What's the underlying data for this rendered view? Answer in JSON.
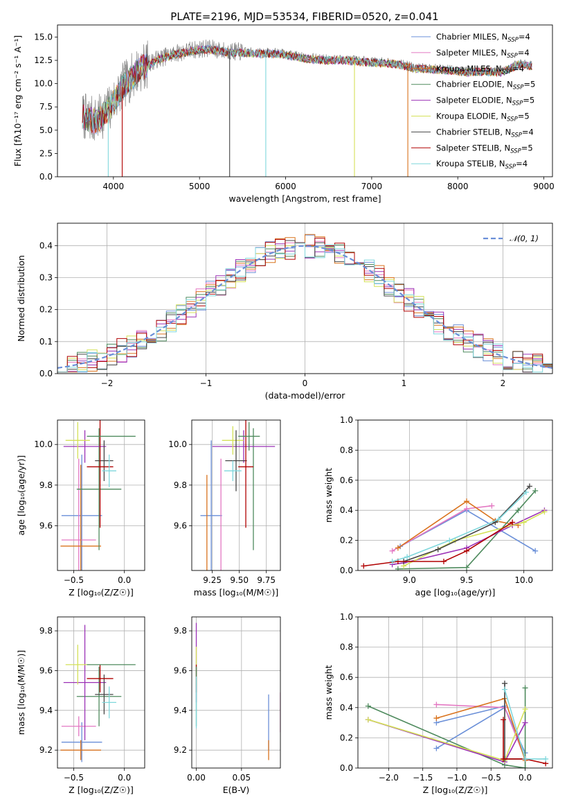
{
  "figure": {
    "title": "PLATE=2196, MJD=53534, FIBERID=0520, z=0.041"
  },
  "colors": {
    "Chabrier MILES": "#6a8fd8",
    "Salpeter MILES": "#e377c2",
    "Kroupa MILES": "#d9721c",
    "Chabrier ELODIE": "#4e8a5d",
    "Salpeter ELODIE": "#9b30b6",
    "Kroupa ELODIE": "#d4e157",
    "Chabrier STELIB": "#444444",
    "Salpeter STELIB": "#b00000",
    "Kroupa STELIB": "#7fd7dc"
  },
  "chart_data": [
    {
      "id": "spectrum",
      "type": "line",
      "title": "PLATE=2196, MJD=53534, FIBERID=0520, z=0.041",
      "xlabel": "wavelength [Angstrom, rest frame]",
      "ylabel": "Flux [fλ10⁻¹⁷ erg cm⁻² s⁻¹ A⁻¹]",
      "xlim": [
        3350,
        9100
      ],
      "ylim": [
        0,
        16.3
      ],
      "xticks": [
        4000,
        5000,
        6000,
        7000,
        8000,
        9000
      ],
      "yticks": [
        0.0,
        2.5,
        5.0,
        7.5,
        10.0,
        12.5,
        15.0
      ],
      "xtick_labels": [
        "4000",
        "5000",
        "6000",
        "7000",
        "8000",
        "9000"
      ],
      "ytick_labels": [
        "0.0",
        "2.5",
        "5.0",
        "7.5",
        "10.0",
        "12.5",
        "15.0"
      ],
      "grid": false,
      "legend_position": "top-right",
      "legend": [
        {
          "label": "Chabrier MILES, N",
          "sub": "SSP",
          "suffix": "=4"
        },
        {
          "label": "Salpeter MILES, N",
          "sub": "SSP",
          "suffix": "=4"
        },
        {
          "label": "Kroupa MILES, N",
          "sub": "SSP",
          "suffix": "=4"
        },
        {
          "label": "Chabrier ELODIE, N",
          "sub": "SSP",
          "suffix": "=5"
        },
        {
          "label": "Salpeter ELODIE, N",
          "sub": "SSP",
          "suffix": "=5"
        },
        {
          "label": "Kroupa ELODIE, N",
          "sub": "SSP",
          "suffix": "=5"
        },
        {
          "label": "Chabrier STELIB, N",
          "sub": "SSP",
          "suffix": "=4"
        },
        {
          "label": "Salpeter STELIB, N",
          "sub": "SSP",
          "suffix": "=5"
        },
        {
          "label": "Kroupa STELIB, N",
          "sub": "SSP",
          "suffix": "=4"
        }
      ],
      "data_trend": {
        "x": [
          3650,
          3800,
          3950,
          4100,
          4300,
          4500,
          4700,
          4900,
          5100,
          5300,
          5500,
          5700,
          5900,
          6100,
          6300,
          6500,
          6700,
          6900,
          7100,
          7300,
          7500,
          7700,
          7900,
          8100,
          8300,
          8500,
          8700,
          8850
        ],
        "y": [
          6.5,
          6.0,
          7.3,
          9.6,
          11.6,
          12.6,
          13.2,
          13.6,
          13.8,
          13.5,
          13.4,
          13.3,
          13.3,
          13.0,
          12.7,
          12.6,
          12.6,
          12.4,
          12.3,
          12.2,
          11.7,
          11.6,
          11.5,
          11.3,
          11.4,
          11.3,
          12.1,
          12.0
        ]
      },
      "line_drops": [
        {
          "x": 3940,
          "series": "Kroupa STELIB"
        },
        {
          "x": 4102,
          "series": "Salpeter STELIB"
        },
        {
          "x": 5350,
          "series": "Chabrier STELIB"
        },
        {
          "x": 5770,
          "series": "Kroupa STELIB"
        },
        {
          "x": 6800,
          "series": "Kroupa ELODIE"
        },
        {
          "x": 7420,
          "series": "Kroupa MILES"
        }
      ]
    },
    {
      "id": "residual_histogram",
      "type": "line",
      "xlabel": "(data-model)/error",
      "ylabel": "Normed distribution",
      "xlim": [
        -2.5,
        2.5
      ],
      "ylim": [
        0,
        0.47
      ],
      "xticks": [
        -2,
        -1,
        0,
        1,
        2
      ],
      "yticks": [
        0.0,
        0.1,
        0.2,
        0.3,
        0.4
      ],
      "xtick_labels": [
        "−2",
        "−1",
        "0",
        "1",
        "2"
      ],
      "ytick_labels": [
        "0.0",
        "0.1",
        "0.2",
        "0.3",
        "0.4"
      ],
      "grid": true,
      "legend_position": "top-right",
      "normal_label": "𝒩(0, 1)",
      "bin_width": 0.1
    },
    {
      "id": "age_vs_Z",
      "type": "scatter",
      "xlabel": "Z [log₁₀(Z/Z☉)]",
      "ylabel": "age  [log₁₀(age/yr)]",
      "xlim": [
        -0.66,
        0.2
      ],
      "ylim": [
        9.38,
        10.12
      ],
      "xticks": [
        -0.5,
        0.0
      ],
      "yticks": [
        9.6,
        9.8,
        10.0
      ],
      "xtick_labels": [
        "−0.5",
        "0.0"
      ],
      "ytick_labels": [
        "9.6",
        "9.8",
        "10.0"
      ],
      "grid": true,
      "errorbars": [
        {
          "series": "Chabrier MILES",
          "x": -0.42,
          "xerr": 0.2,
          "y": 9.65,
          "yerr": 0.3
        },
        {
          "series": "Salpeter MILES",
          "x": -0.45,
          "xerr": 0.17,
          "y": 9.53,
          "yerr": 0.4
        },
        {
          "series": "Kroupa MILES",
          "x": -0.43,
          "xerr": 0.2,
          "y": 9.5,
          "yerr": 0.4
        },
        {
          "series": "Chabrier ELODIE",
          "x": -0.25,
          "xerr": 0.22,
          "y": 9.78,
          "yerr": 0.3
        },
        {
          "series": "Salpeter ELODIE",
          "x": -0.39,
          "xerr": 0.21,
          "y": 9.99,
          "yerr": 0.08
        },
        {
          "series": "Kroupa ELODIE",
          "x": -0.46,
          "xerr": 0.12,
          "y": 10.02,
          "yerr": 0.09
        },
        {
          "series": "Chabrier STELIB",
          "x": -0.2,
          "xerr": 0.09,
          "y": 9.92,
          "yerr": 0.1
        },
        {
          "series": "Salpeter STELIB",
          "x": -0.24,
          "xerr": 0.13,
          "y": 9.89,
          "yerr": 0.3
        },
        {
          "series": "Kroupa STELIB",
          "x": -0.15,
          "xerr": 0.07,
          "y": 9.87,
          "yerr": 0.08
        },
        {
          "series": "Chabrier ELODIE",
          "x": -0.13,
          "xerr": 0.24,
          "y": 10.04,
          "yerr": 0.0
        }
      ]
    },
    {
      "id": "age_vs_mass",
      "type": "scatter",
      "xlabel": "mass [log₁₀(M/M☉)]",
      "ylabel": "",
      "xlim": [
        9.06,
        9.88
      ],
      "ylim": [
        9.38,
        10.12
      ],
      "xticks": [
        9.25,
        9.5,
        9.75
      ],
      "yticks": [
        9.6,
        9.8,
        10.0
      ],
      "xtick_labels": [
        "9.25",
        "9.50",
        "9.75"
      ],
      "ytick_labels": [
        "9.6",
        "9.8",
        "10.0"
      ],
      "grid": true,
      "errorbars": [
        {
          "series": "Chabrier MILES",
          "x": 9.24,
          "xerr": 0.1,
          "y": 9.65,
          "yerr": 0.37
        },
        {
          "series": "Salpeter MILES",
          "x": 9.33,
          "xerr": 0.0,
          "y": 9.53,
          "yerr": 0.4
        },
        {
          "series": "Kroupa MILES",
          "x": 9.2,
          "xerr": 0.0,
          "y": 9.5,
          "yerr": 0.35
        },
        {
          "series": "Chabrier ELODIE",
          "x": 9.63,
          "xerr": 0.0,
          "y": 9.78,
          "yerr": 0.3
        },
        {
          "series": "Salpeter ELODIE",
          "x": 9.54,
          "xerr": 0.29,
          "y": 9.99,
          "yerr": 0.08
        },
        {
          "series": "Kroupa ELODIE",
          "x": 9.44,
          "xerr": 0.1,
          "y": 10.02,
          "yerr": 0.07
        },
        {
          "series": "Chabrier STELIB",
          "x": 9.47,
          "xerr": 0.1,
          "y": 9.92,
          "yerr": 0.15
        },
        {
          "series": "Salpeter STELIB",
          "x": 9.56,
          "xerr": 0.07,
          "y": 9.89,
          "yerr": 0.3
        },
        {
          "series": "Kroupa STELIB",
          "x": 9.44,
          "xerr": 0.08,
          "y": 9.87,
          "yerr": 0.05
        },
        {
          "series": "Chabrier ELODIE",
          "x": 9.59,
          "xerr": 0.1,
          "y": 10.04,
          "yerr": 0.07
        }
      ]
    },
    {
      "id": "weight_vs_age",
      "type": "line",
      "xlabel": "age  [log₁₀(age/yr)]",
      "ylabel": "mass weight",
      "xlim": [
        8.55,
        10.25
      ],
      "ylim": [
        0,
        1.0
      ],
      "xticks": [
        9.0,
        9.5,
        10.0
      ],
      "yticks": [
        0.0,
        0.2,
        0.4,
        0.6,
        0.8,
        1.0
      ],
      "xtick_labels": [
        "9.0",
        "9.5",
        "10.0"
      ],
      "ytick_labels": [
        "0.0",
        "0.2",
        "0.4",
        "0.6",
        "0.8",
        "1.0"
      ],
      "grid": true,
      "series": [
        {
          "series": "Chabrier MILES",
          "x": [
            8.92,
            9.5,
            10.1
          ],
          "y": [
            0.16,
            0.4,
            0.13
          ]
        },
        {
          "series": "Salpeter MILES",
          "x": [
            8.85,
            9.5,
            9.72
          ],
          "y": [
            0.13,
            0.41,
            0.43
          ]
        },
        {
          "series": "Kroupa MILES",
          "x": [
            8.9,
            9.5,
            9.75,
            9.95
          ],
          "y": [
            0.15,
            0.46,
            0.33,
            0.3
          ]
        },
        {
          "series": "Chabrier ELODIE",
          "x": [
            8.9,
            9.5,
            9.95,
            10.1
          ],
          "y": [
            0.01,
            0.02,
            0.4,
            0.53
          ]
        },
        {
          "series": "Salpeter ELODIE",
          "x": [
            8.85,
            8.95,
            9.5,
            9.9,
            10.18
          ],
          "y": [
            0.04,
            0.05,
            0.15,
            0.3,
            0.4
          ]
        },
        {
          "series": "Kroupa ELODIE",
          "x": [
            8.95,
            9.4,
            10.0,
            10.18
          ],
          "y": [
            0.03,
            0.2,
            0.32,
            0.39
          ]
        },
        {
          "series": "Chabrier STELIB",
          "x": [
            8.95,
            9.25,
            9.75,
            10.05
          ],
          "y": [
            0.06,
            0.14,
            0.32,
            0.56
          ]
        },
        {
          "series": "Salpeter STELIB",
          "x": [
            8.6,
            8.9,
            9.3,
            9.5,
            9.9
          ],
          "y": [
            0.03,
            0.06,
            0.06,
            0.13,
            0.32
          ]
        },
        {
          "series": "Kroupa STELIB",
          "x": [
            8.85,
            8.98,
            9.35,
            9.78,
            10.02
          ],
          "y": [
            0.06,
            0.09,
            0.2,
            0.34,
            0.52
          ]
        }
      ]
    },
    {
      "id": "mass_vs_Z",
      "type": "scatter",
      "xlabel": "Z [log₁₀(Z/Z☉)]",
      "ylabel": "mass [log₁₀(M/M☉)]",
      "xlim": [
        -0.66,
        0.2
      ],
      "ylim": [
        9.11,
        9.87
      ],
      "xticks": [
        -0.5,
        0.0
      ],
      "yticks": [
        9.2,
        9.4,
        9.6,
        9.8
      ],
      "xtick_labels": [
        "−0.5",
        "0.0"
      ],
      "ytick_labels": [
        "9.2",
        "9.4",
        "9.6",
        "9.8"
      ],
      "grid": true,
      "errorbars": [
        {
          "series": "Chabrier MILES",
          "x": -0.42,
          "xerr": 0.2,
          "y": 9.24,
          "yerr": 0.1
        },
        {
          "series": "Salpeter MILES",
          "x": -0.45,
          "xerr": 0.17,
          "y": 9.32,
          "yerr": 0.05
        },
        {
          "series": "Kroupa MILES",
          "x": -0.43,
          "xerr": 0.2,
          "y": 9.2,
          "yerr": 0.05
        },
        {
          "series": "Chabrier ELODIE",
          "x": -0.25,
          "xerr": 0.22,
          "y": 9.47,
          "yerr": 0.15
        },
        {
          "series": "Salpeter ELODIE",
          "x": -0.39,
          "xerr": 0.21,
          "y": 9.54,
          "yerr": 0.29
        },
        {
          "series": "Kroupa ELODIE",
          "x": -0.46,
          "xerr": 0.12,
          "y": 9.63,
          "yerr": 0.1
        },
        {
          "series": "Chabrier STELIB",
          "x": -0.2,
          "xerr": 0.09,
          "y": 9.48,
          "yerr": 0.1
        },
        {
          "series": "Salpeter STELIB",
          "x": -0.24,
          "xerr": 0.13,
          "y": 9.56,
          "yerr": 0.07
        },
        {
          "series": "Kroupa STELIB",
          "x": -0.15,
          "xerr": 0.07,
          "y": 9.44,
          "yerr": 0.08
        },
        {
          "series": "Chabrier ELODIE",
          "x": -0.13,
          "xerr": 0.24,
          "y": 9.63,
          "yerr": 0.0
        }
      ]
    },
    {
      "id": "mass_vs_ebv",
      "type": "scatter",
      "xlabel": "E(B-V)",
      "ylabel": "",
      "xlim": [
        -0.005,
        0.093
      ],
      "ylim": [
        9.11,
        9.87
      ],
      "xticks": [
        0.0,
        0.05
      ],
      "yticks": [
        9.2,
        9.4,
        9.6,
        9.8
      ],
      "xtick_labels": [
        "0.00",
        "0.05"
      ],
      "ytick_labels": [
        "9.2",
        "9.4",
        "9.6",
        "9.8"
      ],
      "grid": true,
      "errorbars": [
        {
          "series": "Salpeter ELODIE",
          "x": 0.0,
          "xerr": 0.0,
          "y": 9.64,
          "yerr": 0.2
        },
        {
          "series": "Kroupa ELODIE",
          "x": 0.0,
          "xerr": 0.0,
          "y": 9.62,
          "yerr": 0.1
        },
        {
          "series": "Salpeter STELIB",
          "x": 0.0,
          "xerr": 0.0,
          "y": 9.56,
          "yerr": 0.07
        },
        {
          "series": "Chabrier ELODIE",
          "x": 0.0,
          "xerr": 0.0,
          "y": 9.47,
          "yerr": 0.15
        },
        {
          "series": "Kroupa STELIB",
          "x": 0.0,
          "xerr": 0.0,
          "y": 9.44,
          "yerr": 0.13
        },
        {
          "series": "Chabrier MILES",
          "x": 0.08,
          "xerr": 0.0,
          "y": 9.34,
          "yerr": 0.14
        },
        {
          "series": "Kroupa MILES",
          "x": 0.08,
          "xerr": 0.0,
          "y": 9.2,
          "yerr": 0.05
        },
        {
          "series": "Salpeter MILES",
          "x": 0.093,
          "xerr": 0.0,
          "y": 9.39,
          "yerr": 0.1
        }
      ]
    },
    {
      "id": "weight_vs_Z",
      "type": "line",
      "xlabel": "Z [log₁₀(Z/Z☉)]",
      "ylabel": "mass weight",
      "xlim": [
        -2.45,
        0.4
      ],
      "ylim": [
        0,
        1.0
      ],
      "xticks": [
        -2.0,
        -1.5,
        -1.0,
        -0.5,
        0.0
      ],
      "yticks": [
        0.0,
        0.2,
        0.4,
        0.6,
        0.8,
        1.0
      ],
      "xtick_labels": [
        "−2.0",
        "−1.5",
        "−1.0",
        "−0.5",
        "0.0"
      ],
      "ytick_labels": [
        "0.0",
        "0.2",
        "0.4",
        "0.6",
        "0.8",
        "1.0"
      ],
      "grid": true,
      "series": [
        {
          "series": "Chabrier MILES",
          "x": [
            -1.3,
            -0.3,
            0.0
          ],
          "y": [
            0.13,
            0.4,
            0.1
          ]
        },
        {
          "series": "Chabrier MILES",
          "x": [
            -1.3,
            -0.3
          ],
          "y": [
            0.3,
            0.41
          ]
        },
        {
          "series": "Salpeter MILES",
          "x": [
            -1.3,
            -0.3,
            0.0
          ],
          "y": [
            0.42,
            0.4,
            0.06
          ]
        },
        {
          "series": "Kroupa MILES",
          "x": [
            -1.3,
            -0.3,
            0.0
          ],
          "y": [
            0.33,
            0.46,
            0.05
          ]
        },
        {
          "series": "Chabrier ELODIE",
          "x": [
            -2.3,
            -0.3,
            0.0,
            0.0
          ],
          "y": [
            0.41,
            0.02,
            0.0,
            0.53
          ]
        },
        {
          "series": "Salpeter ELODIE",
          "x": [
            -2.3,
            -0.3,
            0.0
          ],
          "y": [
            0.32,
            0.04,
            0.3
          ]
        },
        {
          "series": "Kroupa ELODIE",
          "x": [
            -2.3,
            -0.3,
            0.0
          ],
          "y": [
            0.32,
            0.05,
            0.39
          ]
        },
        {
          "series": "Chabrier STELIB",
          "x": [
            -0.3,
            -0.3,
            0.0
          ],
          "y": [
            0.56,
            0.06,
            0.06
          ]
        },
        {
          "series": "Salpeter STELIB",
          "x": [
            -0.32,
            -0.32,
            0.0,
            0.3
          ],
          "y": [
            0.32,
            0.06,
            0.06,
            0.03
          ]
        },
        {
          "series": "Kroupa STELIB",
          "x": [
            -0.3,
            0.0,
            0.3
          ],
          "y": [
            0.52,
            0.06,
            0.06
          ]
        }
      ]
    }
  ]
}
